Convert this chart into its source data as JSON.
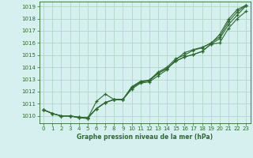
{
  "xlabel": "Graphe pression niveau de la mer (hPa)",
  "xlim": [
    -0.5,
    23.5
  ],
  "ylim": [
    1009.4,
    1019.4
  ],
  "yticks": [
    1010,
    1011,
    1012,
    1013,
    1014,
    1015,
    1016,
    1017,
    1018,
    1019
  ],
  "xticks": [
    0,
    1,
    2,
    3,
    4,
    5,
    6,
    7,
    8,
    9,
    10,
    11,
    12,
    13,
    14,
    15,
    16,
    17,
    18,
    19,
    20,
    21,
    22,
    23
  ],
  "bg_color": "#d6f0f0",
  "grid_color": "#b0d8c8",
  "line_color": "#2d6a2d",
  "line1_x": [
    0,
    1,
    2,
    3,
    4,
    5,
    6,
    7,
    8,
    9,
    10,
    11,
    12,
    13,
    14,
    15,
    16,
    17,
    18,
    19,
    20,
    21,
    22,
    23
  ],
  "line1_y": [
    1010.5,
    1010.2,
    1010.0,
    1010.0,
    1009.9,
    1009.85,
    1010.6,
    1011.1,
    1011.35,
    1011.35,
    1012.3,
    1012.8,
    1012.9,
    1013.5,
    1013.9,
    1014.5,
    1014.85,
    1015.05,
    1015.3,
    1015.9,
    1016.35,
    1017.5,
    1018.3,
    1019.05
  ],
  "line2_x": [
    0,
    1,
    2,
    3,
    4,
    5,
    6,
    7,
    8,
    9,
    10,
    11,
    12,
    13,
    14,
    15,
    16,
    17,
    18,
    19,
    20,
    21,
    22,
    23
  ],
  "line2_y": [
    1010.5,
    1010.2,
    1010.0,
    1010.0,
    1009.9,
    1009.85,
    1010.6,
    1011.1,
    1011.35,
    1011.35,
    1012.3,
    1012.8,
    1012.9,
    1013.5,
    1013.9,
    1014.5,
    1014.85,
    1015.05,
    1015.3,
    1015.9,
    1016.0,
    1017.2,
    1018.0,
    1018.6
  ],
  "line3_x": [
    0,
    1,
    2,
    3,
    4,
    5,
    6,
    7,
    8,
    9,
    10,
    11,
    12,
    13,
    14,
    15,
    16,
    17,
    18,
    19,
    20,
    21,
    22,
    23
  ],
  "line3_y": [
    1010.5,
    1010.2,
    1010.0,
    1010.0,
    1009.85,
    1009.8,
    1011.2,
    1011.8,
    1011.35,
    1011.35,
    1012.4,
    1012.85,
    1012.95,
    1013.6,
    1014.0,
    1014.7,
    1015.0,
    1015.4,
    1015.6,
    1016.0,
    1016.5,
    1017.75,
    1018.55,
    1019.1
  ],
  "line4_x": [
    0,
    1,
    2,
    3,
    4,
    5,
    6,
    7,
    8,
    9,
    10,
    11,
    12,
    13,
    14,
    15,
    16,
    17,
    18,
    19,
    20,
    21,
    22,
    23
  ],
  "line4_y": [
    1010.5,
    1010.2,
    1010.0,
    1010.0,
    1009.85,
    1009.8,
    1010.6,
    1011.1,
    1011.35,
    1011.35,
    1012.2,
    1012.7,
    1012.8,
    1013.3,
    1013.8,
    1014.6,
    1015.2,
    1015.45,
    1015.65,
    1015.95,
    1016.7,
    1017.95,
    1018.75,
    1019.1
  ]
}
